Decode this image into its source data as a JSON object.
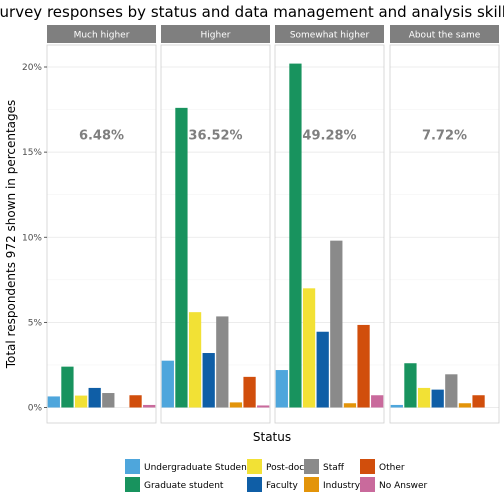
{
  "chart_data": {
    "type": "bar",
    "title": "Survey responses by status and data management and analysis skills following the",
    "xlabel": "Status",
    "ylabel": "Total respondents 972 shown in percentages",
    "ylim": [
      0,
      21
    ],
    "yticks": [
      0,
      5,
      10,
      15,
      20
    ],
    "ytick_labels": [
      "0%",
      "5%",
      "10%",
      "15%",
      "20%"
    ],
    "grid": true,
    "legend_position": "bottom",
    "facets": [
      "Much higher",
      "Higher",
      "Somewhat higher",
      "About the same"
    ],
    "facet_annotations": [
      "6.48%",
      "36.52%",
      "49.28%",
      "7.72%"
    ],
    "categories": [
      "Undergraduate Student",
      "Graduate student",
      "Post-doc",
      "Faculty",
      "Staff",
      "Industry",
      "Other",
      "No Answer"
    ],
    "colors": [
      "#4ea6dc",
      "#18935e",
      "#f2e135",
      "#0f5ea6",
      "#8a8a8a",
      "#e39409",
      "#d14e0c",
      "#c96a9c"
    ],
    "series": [
      {
        "facet": "Much higher",
        "values": [
          0.65,
          2.4,
          0.7,
          1.15,
          0.85,
          0.0,
          0.72,
          0.15
        ]
      },
      {
        "facet": "Higher",
        "values": [
          2.75,
          17.6,
          5.6,
          3.2,
          5.35,
          0.3,
          1.8,
          0.12
        ]
      },
      {
        "facet": "Somewhat higher",
        "values": [
          2.2,
          20.2,
          7.0,
          4.45,
          9.8,
          0.25,
          4.85,
          0.72
        ]
      },
      {
        "facet": "About the same",
        "values": [
          0.15,
          2.6,
          1.15,
          1.05,
          1.95,
          0.25,
          0.72,
          0.0
        ]
      }
    ]
  }
}
